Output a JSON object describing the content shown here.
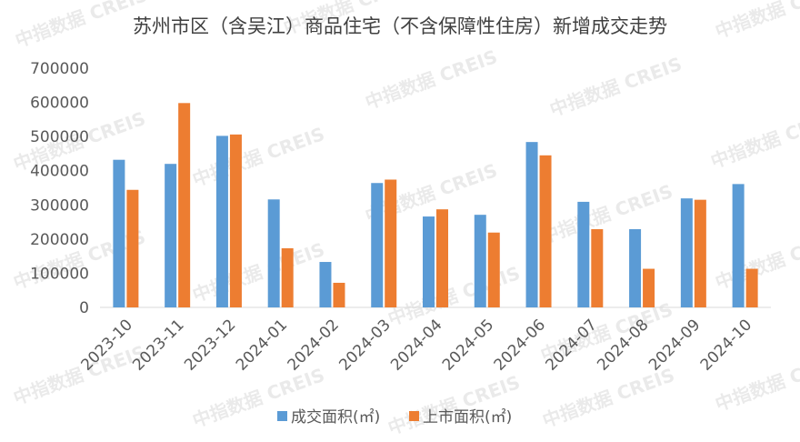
{
  "chart_data": {
    "type": "bar",
    "title": "苏州市区（含吴江）商品住宅（不含保障性住房）新增成交走势",
    "categories": [
      "2023-10",
      "2023-11",
      "2023-12",
      "2024-01",
      "2024-02",
      "2024-03",
      "2024-04",
      "2024-05",
      "2024-06",
      "2024-07",
      "2024-08",
      "2024-09",
      "2024-10"
    ],
    "series": [
      {
        "name": "成交面积(㎡)",
        "color": "#5b9bd5",
        "values": [
          432000,
          420000,
          502000,
          316000,
          133000,
          364000,
          266000,
          271000,
          484000,
          309000,
          229000,
          319000,
          361000
        ]
      },
      {
        "name": "上市面积(㎡)",
        "color": "#ed7d31",
        "values": [
          344000,
          598000,
          506000,
          173000,
          72000,
          374000,
          287000,
          219000,
          445000,
          229000,
          113000,
          315000,
          113000
        ]
      }
    ],
    "y_ticks": [
      "0",
      "100000",
      "200000",
      "300000",
      "400000",
      "500000",
      "600000",
      "700000"
    ],
    "ylim": [
      0,
      700000
    ],
    "grid": false,
    "legend_position": "bottom",
    "watermark": "中指数据 CREIS"
  }
}
